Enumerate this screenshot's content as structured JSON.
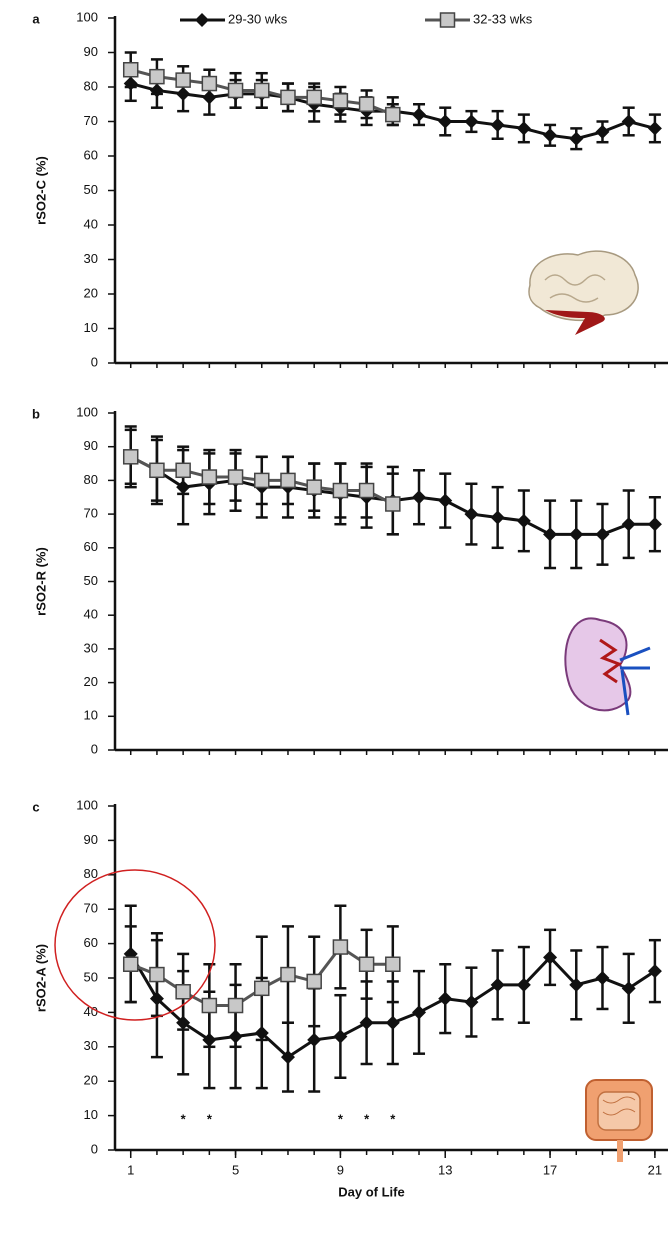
{
  "chart_data": [
    {
      "type": "line",
      "panel_label": "a",
      "y_label": "rSO2-C (%)",
      "x": [
        1,
        2,
        3,
        4,
        5,
        6,
        7,
        8,
        9,
        10,
        11,
        12,
        13,
        14,
        15,
        16,
        17,
        18,
        19,
        20,
        21
      ],
      "xlim": [
        0.4,
        21.5
      ],
      "ylim": [
        0,
        100
      ],
      "yticks": [
        0,
        10,
        20,
        30,
        40,
        50,
        60,
        70,
        80,
        90,
        100
      ],
      "series": [
        {
          "name": "29-30 wks",
          "color": "#111111",
          "marker": "diamond",
          "values": [
            81,
            79,
            78,
            77,
            78,
            78,
            77,
            75,
            74,
            73,
            73,
            72,
            70,
            70,
            69,
            68,
            66,
            65,
            67,
            70,
            68
          ],
          "errors": [
            5,
            5,
            5,
            5,
            4,
            4,
            4,
            5,
            4,
            4,
            4,
            3,
            4,
            3,
            4,
            4,
            3,
            3,
            3,
            4,
            4
          ]
        },
        {
          "name": "32-33 wks",
          "color": "#c8c8c8",
          "marker": "square",
          "values": [
            85,
            83,
            82,
            81,
            79,
            79,
            77,
            77,
            76,
            75,
            72,
            null,
            null,
            null,
            null,
            null,
            null,
            null,
            null,
            null,
            null
          ],
          "errors": [
            5,
            5,
            4,
            4,
            5,
            5,
            4,
            4,
            4,
            4,
            3,
            null,
            null,
            null,
            null,
            null,
            null,
            null,
            null,
            null,
            null
          ]
        }
      ]
    },
    {
      "type": "line",
      "panel_label": "b",
      "y_label": "rSO2-R (%)",
      "x": [
        1,
        2,
        3,
        4,
        5,
        6,
        7,
        8,
        9,
        10,
        11,
        12,
        13,
        14,
        15,
        16,
        17,
        18,
        19,
        20,
        21
      ],
      "xlim": [
        0.4,
        21.5
      ],
      "ylim": [
        0,
        100
      ],
      "yticks": [
        0,
        10,
        20,
        30,
        40,
        50,
        60,
        70,
        80,
        90,
        100
      ],
      "series": [
        {
          "color": "#111111",
          "marker": "diamond",
          "values": [
            87,
            83,
            78,
            79,
            80,
            78,
            78,
            77,
            76,
            75,
            74,
            75,
            74,
            70,
            69,
            68,
            64,
            64,
            64,
            67,
            67
          ],
          "errors": [
            9,
            10,
            11,
            9,
            9,
            9,
            9,
            8,
            9,
            9,
            10,
            8,
            8,
            9,
            9,
            9,
            10,
            10,
            9,
            10,
            8
          ]
        },
        {
          "color": "#c8c8c8",
          "marker": "square",
          "values": [
            87,
            83,
            83,
            81,
            81,
            80,
            80,
            78,
            77,
            77,
            73,
            null,
            null,
            null,
            null,
            null,
            null,
            null,
            null,
            null,
            null
          ],
          "errors": [
            8,
            9,
            7,
            8,
            7,
            7,
            7,
            7,
            8,
            8,
            9,
            null,
            null,
            null,
            null,
            null,
            null,
            null,
            null,
            null,
            null
          ]
        }
      ]
    },
    {
      "type": "line",
      "panel_label": "c",
      "y_label": "rSO2-A (%)",
      "x_label": "Day of Life",
      "x": [
        1,
        2,
        3,
        4,
        5,
        6,
        7,
        8,
        9,
        10,
        11,
        12,
        13,
        14,
        15,
        16,
        17,
        18,
        19,
        20,
        21
      ],
      "xlim": [
        0.4,
        21.5
      ],
      "xticks": [
        1,
        5,
        9,
        13,
        17,
        21
      ],
      "ylim": [
        0,
        100
      ],
      "yticks": [
        0,
        10,
        20,
        30,
        40,
        50,
        60,
        70,
        80,
        90,
        100
      ],
      "series": [
        {
          "color": "#111111",
          "marker": "diamond",
          "values": [
            57,
            44,
            37,
            32,
            33,
            34,
            27,
            32,
            33,
            37,
            37,
            40,
            44,
            43,
            48,
            48,
            56,
            48,
            50,
            47,
            52
          ],
          "errors": [
            14,
            17,
            15,
            14,
            15,
            16,
            10,
            15,
            12,
            12,
            12,
            12,
            10,
            10,
            10,
            11,
            8,
            10,
            9,
            10,
            9
          ]
        },
        {
          "color": "#c8c8c8",
          "marker": "square",
          "values": [
            54,
            51,
            46,
            42,
            42,
            47,
            51,
            49,
            59,
            54,
            54,
            null,
            null,
            null,
            null,
            null,
            null,
            null,
            null,
            null,
            null
          ],
          "errors": [
            11,
            12,
            11,
            12,
            12,
            15,
            14,
            13,
            12,
            10,
            11,
            null,
            null,
            null,
            null,
            null,
            null,
            null,
            null,
            null,
            null
          ]
        }
      ],
      "annotations": [
        {
          "text": "*",
          "x": 3
        },
        {
          "text": "*",
          "x": 4
        },
        {
          "text": "*",
          "x": 9
        },
        {
          "text": "*",
          "x": 10
        },
        {
          "text": "*",
          "x": 11
        }
      ]
    }
  ]
}
